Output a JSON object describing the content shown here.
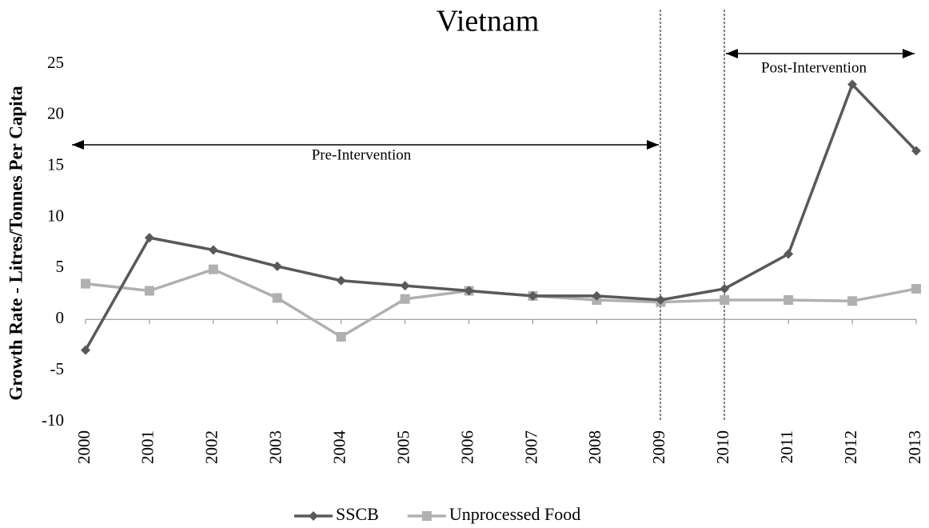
{
  "chart_data": {
    "type": "line",
    "title": "Vietnam",
    "y_label": "Growth Rate - Litres/Tonnes Per Capita",
    "categories": [
      "2000",
      "2001",
      "2002",
      "2003",
      "2004",
      "2005",
      "2006",
      "2007",
      "2008",
      "2009",
      "2010",
      "2011",
      "2012",
      "2013"
    ],
    "series": [
      {
        "name": "SSCB",
        "color": "#595959",
        "marker": "diamond",
        "values": [
          -3.0,
          8.0,
          6.8,
          5.2,
          3.8,
          3.3,
          2.8,
          2.3,
          2.3,
          1.9,
          3.0,
          6.4,
          23.0,
          16.5
        ]
      },
      {
        "name": "Unprocessed Food",
        "color": "#b0b0b0",
        "marker": "square",
        "values": [
          3.5,
          2.8,
          4.9,
          2.1,
          -1.7,
          2.0,
          2.8,
          2.3,
          1.9,
          1.7,
          1.9,
          1.9,
          1.8,
          3.0
        ]
      }
    ],
    "ylim": [
      -10,
      25
    ],
    "yticks": [
      -10,
      -5,
      0,
      5,
      10,
      15,
      20,
      25
    ],
    "grid": false,
    "annotations": [
      {
        "text": "Pre-Intervention"
      },
      {
        "text": "Post-Intervention"
      }
    ],
    "legend": "bottom"
  }
}
